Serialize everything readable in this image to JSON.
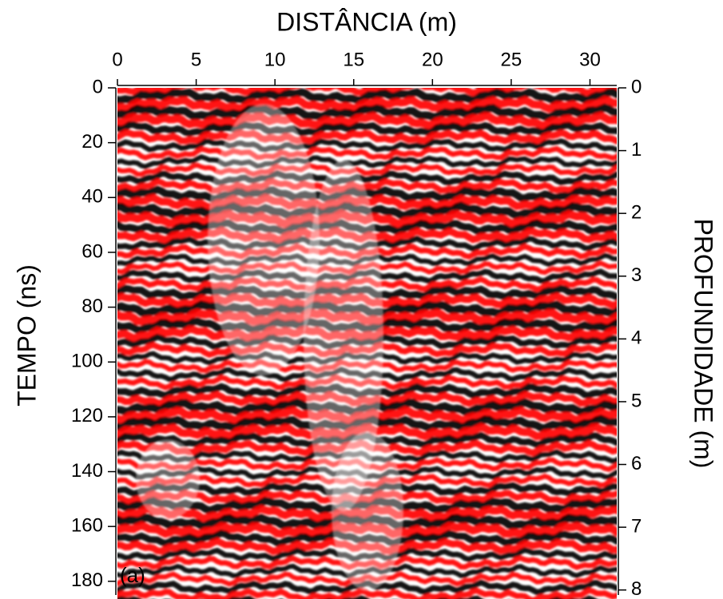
{
  "chart_data": {
    "type": "heatmap",
    "xlabel": "DISTÂNCIA (m)",
    "ylabel": "TEMPO (ns)",
    "y2label": "PROFUNDIDADE (m)",
    "annotation": "(a)",
    "xlim": [
      0,
      31.7
    ],
    "xticks": [
      0,
      5,
      10,
      15,
      20,
      25,
      30
    ],
    "ylim": [
      0,
      185
    ],
    "yticks": [
      0,
      20,
      40,
      60,
      80,
      100,
      120,
      140,
      160,
      180
    ],
    "y2lim": [
      0,
      8.08
    ],
    "y2ticks": [
      0,
      1,
      2,
      3,
      4,
      5,
      6,
      7,
      8
    ],
    "y_inverted": true,
    "colors": [
      "#ff0000",
      "#000000",
      "#ffffff"
    ]
  }
}
